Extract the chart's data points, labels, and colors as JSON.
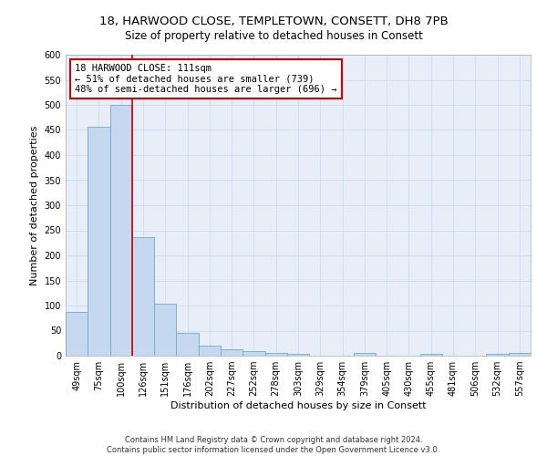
{
  "title1": "18, HARWOOD CLOSE, TEMPLETOWN, CONSETT, DH8 7PB",
  "title2": "Size of property relative to detached houses in Consett",
  "xlabel": "Distribution of detached houses by size in Consett",
  "ylabel": "Number of detached properties",
  "bin_labels": [
    "49sqm",
    "75sqm",
    "100sqm",
    "126sqm",
    "151sqm",
    "176sqm",
    "202sqm",
    "227sqm",
    "252sqm",
    "278sqm",
    "303sqm",
    "329sqm",
    "354sqm",
    "379sqm",
    "405sqm",
    "430sqm",
    "455sqm",
    "481sqm",
    "506sqm",
    "532sqm",
    "557sqm"
  ],
  "bar_heights": [
    88,
    457,
    500,
    236,
    104,
    46,
    20,
    13,
    9,
    6,
    4,
    0,
    0,
    5,
    0,
    0,
    3,
    0,
    0,
    4,
    5
  ],
  "bar_color": "#c5d8f0",
  "bar_edge_color": "#6aaad4",
  "bar_width": 1.0,
  "red_line_x": 2.5,
  "annotation_text": "18 HARWOOD CLOSE: 111sqm\n← 51% of detached houses are smaller (739)\n48% of semi-detached houses are larger (696) →",
  "annotation_box_color": "#ffffff",
  "annotation_edge_color": "#cc0000",
  "ylim": [
    0,
    600
  ],
  "yticks": [
    0,
    50,
    100,
    150,
    200,
    250,
    300,
    350,
    400,
    450,
    500,
    550,
    600
  ],
  "grid_color": "#c8d8f0",
  "bg_color": "#ffffff",
  "plot_bg_color": "#e8eef8",
  "footer_text": "Contains HM Land Registry data © Crown copyright and database right 2024.\nContains public sector information licensed under the Open Government Licence v3.0.",
  "title1_fontsize": 9.5,
  "title2_fontsize": 8.5,
  "axis_label_fontsize": 8,
  "tick_fontsize": 7,
  "annotation_fontsize": 7.5,
  "footer_fontsize": 6
}
